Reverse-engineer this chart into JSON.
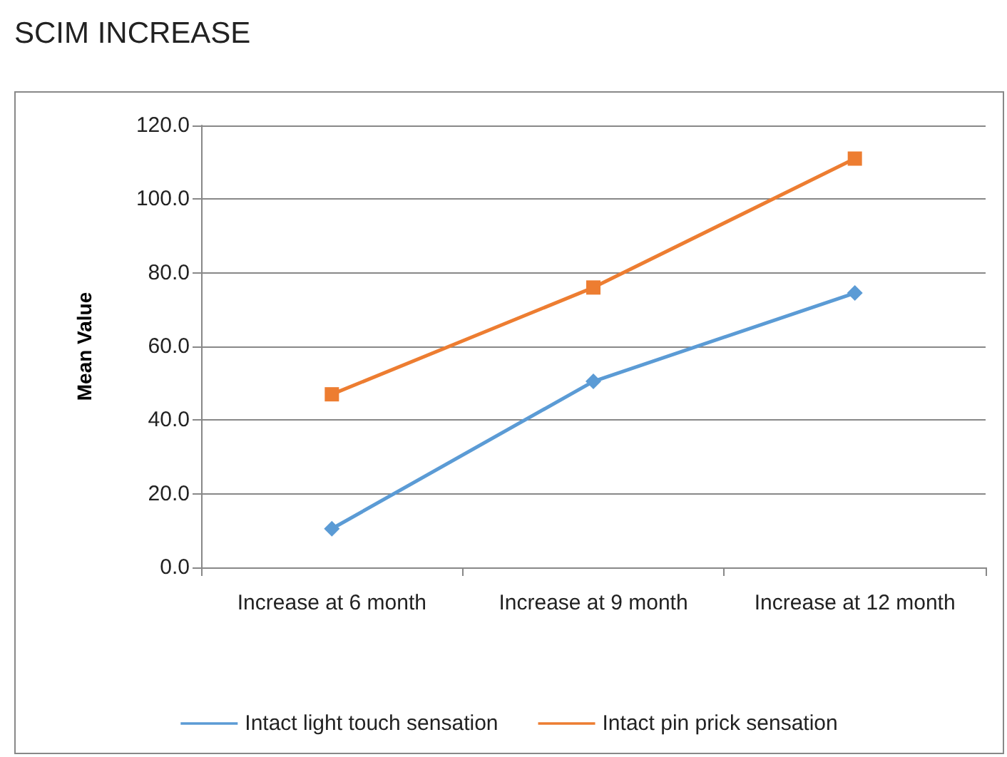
{
  "chart_data": {
    "type": "line",
    "title": "SCIM INCREASE",
    "ylabel": "Mean Value",
    "categories": [
      "Increase at 6 month",
      "Increase at 9 month",
      "Increase at 12 month"
    ],
    "series": [
      {
        "name": "Intact light touch sensation",
        "color": "#5b9bd5",
        "marker": "diamond",
        "values": [
          10.5,
          50.5,
          74.5
        ]
      },
      {
        "name": "Intact pin prick sensation",
        "color": "#ed7d31",
        "marker": "square",
        "values": [
          47,
          76,
          111
        ]
      }
    ],
    "ylim": [
      0,
      120
    ],
    "yticks": [
      {
        "value": 0,
        "label": "0.0"
      },
      {
        "value": 20,
        "label": "20.0"
      },
      {
        "value": 40,
        "label": "40.0"
      },
      {
        "value": 60,
        "label": "60.0"
      },
      {
        "value": 80,
        "label": "80.0"
      },
      {
        "value": 100,
        "label": "100.0"
      },
      {
        "value": 120,
        "label": "120.0"
      }
    ],
    "grid": "y",
    "legend": "bottom",
    "line_style": "solid"
  }
}
